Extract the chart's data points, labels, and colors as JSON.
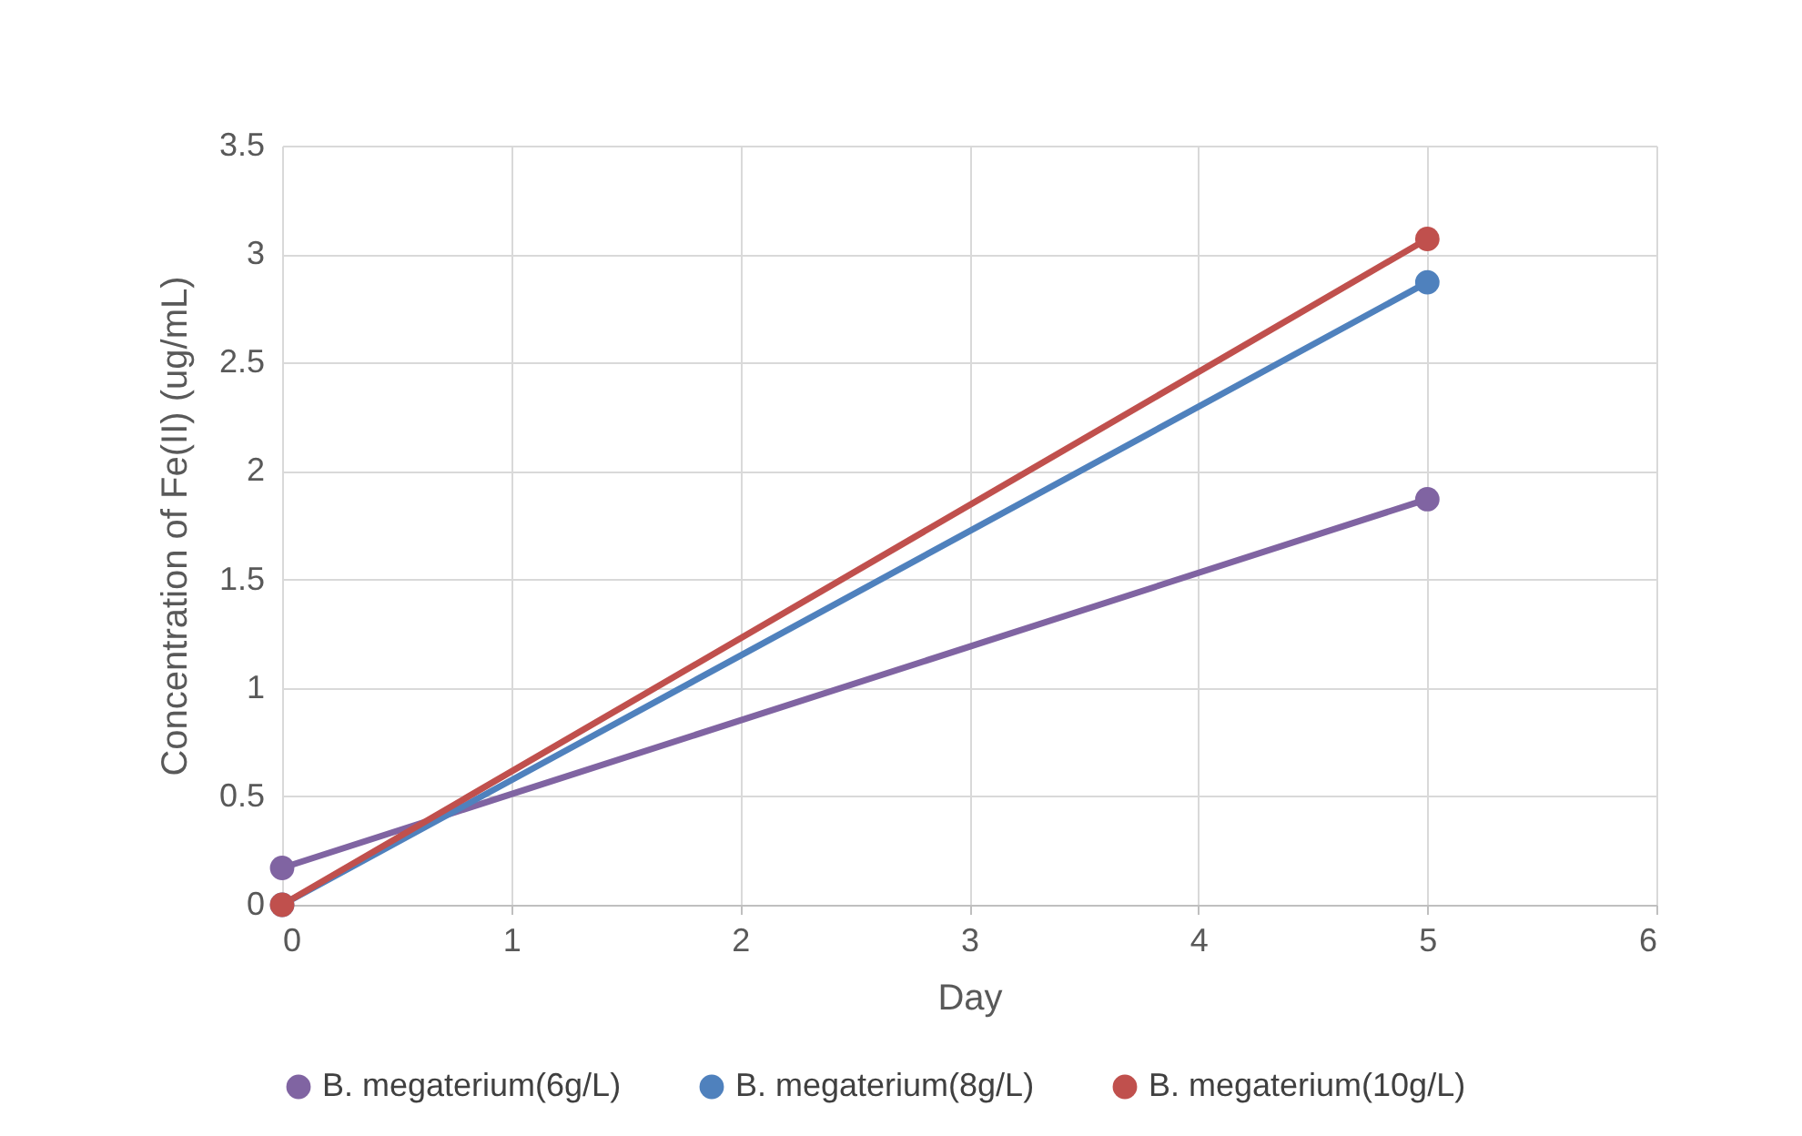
{
  "chart_data": {
    "type": "line",
    "xlabel": "Day",
    "ylabel": "Concentration of Fe(II) (ug/mL)",
    "x": [
      0,
      5
    ],
    "series": [
      {
        "name": "B. megaterium(6g/L)",
        "color": "#8064a2",
        "values": [
          0.17,
          1.87
        ]
      },
      {
        "name": "B. megaterium(8g/L)",
        "color": "#4f81bd",
        "values": [
          0,
          2.87
        ]
      },
      {
        "name": "B. megaterium(10g/L)",
        "color": "#c0504d",
        "values": [
          0,
          3.07
        ]
      }
    ],
    "xlim": [
      0,
      6
    ],
    "xticks": [
      0,
      1,
      2,
      3,
      4,
      5,
      6
    ],
    "ylim": [
      0,
      3.5
    ],
    "yticks": [
      0,
      0.5,
      1,
      1.5,
      2,
      2.5,
      3,
      3.5
    ],
    "grid": true,
    "legend": "bottom",
    "marker": "circle",
    "line_style": "solid"
  }
}
